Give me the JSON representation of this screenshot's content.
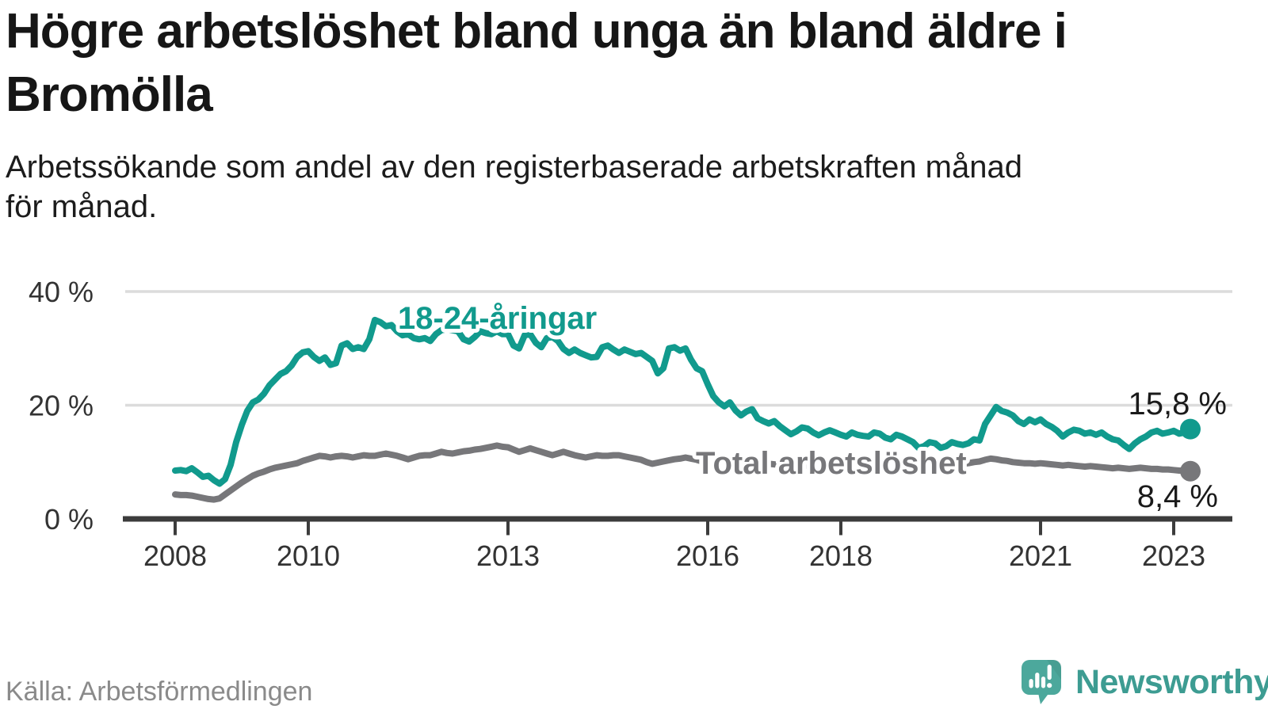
{
  "header": {
    "title_lines": [
      "Högre arbetslöshet bland unga än bland äldre i",
      "Bromölla"
    ],
    "subtitle_lines": [
      "Arbetssökande som andel av den registerbaserade arbetskraften månad",
      "för månad."
    ]
  },
  "footer": {
    "source": "Källa: Arbetsförmedlingen",
    "logo_text": "Newsworthy"
  },
  "colors": {
    "background": "#ffffff",
    "title_text": "#161616",
    "subtitle_text": "#1c1c1c",
    "series_young": "#119A8D",
    "series_total": "#77777A",
    "gridline": "#dcdcdc",
    "axis": "#3c3c3c",
    "tick_label": "#333333",
    "value_label": "#1a1a1a",
    "source_text": "#8a8a8a",
    "logo_bubble": "#4CA89C",
    "logo_text": "#3d9c92",
    "label_halo": "#ffffff"
  },
  "chart_data": {
    "type": "line",
    "title": "Högre arbetslöshet bland unga än bland äldre i Bromölla",
    "subtitle": "Arbetssökande som andel av den registerbaserade arbetskraften månad för månad.",
    "source": "Källa: Arbetsförmedlingen",
    "x_unit": "month",
    "x_start": "2008-01",
    "x_end": "2023-04",
    "x_tick_years": [
      2008,
      2010,
      2013,
      2016,
      2018,
      2021,
      2023
    ],
    "y_ticks": [
      {
        "value": 0,
        "label": "0 %"
      },
      {
        "value": 20,
        "label": "20 %"
      },
      {
        "value": 40,
        "label": "40 %"
      }
    ],
    "ylim": [
      0,
      42
    ],
    "grid": "horizontal",
    "legend_position": "inline-labels",
    "series": [
      {
        "id": "young",
        "name": "18-24-åringar",
        "color": "#119A8D",
        "end_value_label": "15,8 %",
        "values": [
          8.5,
          8.6,
          8.4,
          8.9,
          8.2,
          7.4,
          7.6,
          6.8,
          6.2,
          7.0,
          9.5,
          13.5,
          16.5,
          19.0,
          20.5,
          21.0,
          22.0,
          23.5,
          24.5,
          25.5,
          26.0,
          27.0,
          28.5,
          29.3,
          29.5,
          28.5,
          27.8,
          28.4,
          27.1,
          27.4,
          30.5,
          30.9,
          29.9,
          30.2,
          29.9,
          31.6,
          35.0,
          34.6,
          33.9,
          34.1,
          33.0,
          32.3,
          32.5,
          31.8,
          31.6,
          31.8,
          31.3,
          32.5,
          33.2,
          33.4,
          33.2,
          33.0,
          31.6,
          31.2,
          32.0,
          33.0,
          32.7,
          32.5,
          33.0,
          32.5,
          32.5,
          30.5,
          30.0,
          32.3,
          32.5,
          31.0,
          30.2,
          31.8,
          32.0,
          31.3,
          29.9,
          29.2,
          29.8,
          29.2,
          28.8,
          28.4,
          28.5,
          30.2,
          30.5,
          29.8,
          29.2,
          29.8,
          29.4,
          29.0,
          29.2,
          28.5,
          27.8,
          25.6,
          26.5,
          30.0,
          30.2,
          29.6,
          30.0,
          28.0,
          26.5,
          26.0,
          23.7,
          21.6,
          20.5,
          19.8,
          20.5,
          19.1,
          18.2,
          18.9,
          19.3,
          17.7,
          17.2,
          16.8,
          17.2,
          16.3,
          15.6,
          14.9,
          15.4,
          16.1,
          15.9,
          15.2,
          14.7,
          15.2,
          15.6,
          15.2,
          14.8,
          14.5,
          15.2,
          14.8,
          14.6,
          14.5,
          15.2,
          15.0,
          14.3,
          14.0,
          14.8,
          14.5,
          14.0,
          13.5,
          12.5,
          12.8,
          13.5,
          13.3,
          12.5,
          12.8,
          13.5,
          13.2,
          13.0,
          13.3,
          14.0,
          13.8,
          16.7,
          18.2,
          19.7,
          19.0,
          18.7,
          18.2,
          17.2,
          16.7,
          17.5,
          17.0,
          17.5,
          16.7,
          16.2,
          15.5,
          14.5,
          15.2,
          15.7,
          15.5,
          15.0,
          15.2,
          14.8,
          15.2,
          14.5,
          14.0,
          13.8,
          13.0,
          12.3,
          13.3,
          14.0,
          14.5,
          15.2,
          15.5,
          15.0,
          15.2,
          15.5,
          15.0,
          15.2,
          15.8
        ]
      },
      {
        "id": "total",
        "name": "Total arbetslöshet",
        "color": "#77777A",
        "end_value_label": "8,4 %",
        "values": [
          4.3,
          4.2,
          4.2,
          4.1,
          3.9,
          3.7,
          3.5,
          3.4,
          3.6,
          4.3,
          5.0,
          5.7,
          6.4,
          7.0,
          7.6,
          8.0,
          8.3,
          8.7,
          9.0,
          9.2,
          9.4,
          9.6,
          9.8,
          10.2,
          10.5,
          10.8,
          11.1,
          11.0,
          10.8,
          11.0,
          11.1,
          11.0,
          10.8,
          11.0,
          11.2,
          11.1,
          11.1,
          11.3,
          11.5,
          11.3,
          11.1,
          10.8,
          10.5,
          10.8,
          11.1,
          11.2,
          11.2,
          11.5,
          11.8,
          11.6,
          11.5,
          11.7,
          11.9,
          12.0,
          12.2,
          12.3,
          12.5,
          12.7,
          12.9,
          12.7,
          12.6,
          12.2,
          11.8,
          12.1,
          12.4,
          12.1,
          11.8,
          11.5,
          11.2,
          11.5,
          11.8,
          11.5,
          11.2,
          11.0,
          10.8,
          11.0,
          11.2,
          11.1,
          11.1,
          11.2,
          11.2,
          11.0,
          10.8,
          10.6,
          10.4,
          10.0,
          9.7,
          9.9,
          10.1,
          10.3,
          10.5,
          10.6,
          10.8,
          10.6,
          10.4,
          10.1,
          9.8,
          10.0,
          10.1,
          9.8,
          9.4,
          9.6,
          9.8,
          9.9,
          10.0,
          9.9,
          9.8,
          9.7,
          9.6,
          9.5,
          9.4,
          9.3,
          9.2,
          9.3,
          9.4,
          9.5,
          9.4,
          9.3,
          9.2,
          9.2,
          9.3,
          9.4,
          9.3,
          9.2,
          9.1,
          9.2,
          9.3,
          9.4,
          9.3,
          9.2,
          9.3,
          9.4,
          9.5,
          9.4,
          9.3,
          9.4,
          9.5,
          9.6,
          9.5,
          9.6,
          9.7,
          9.6,
          9.7,
          9.8,
          10.0,
          10.1,
          10.4,
          10.6,
          10.5,
          10.3,
          10.2,
          10.0,
          9.9,
          9.8,
          9.8,
          9.7,
          9.8,
          9.7,
          9.6,
          9.5,
          9.4,
          9.5,
          9.4,
          9.3,
          9.2,
          9.3,
          9.2,
          9.1,
          9.0,
          8.9,
          9.0,
          8.9,
          8.8,
          8.9,
          9.0,
          8.9,
          8.8,
          8.8,
          8.7,
          8.7,
          8.6,
          8.5,
          8.5,
          8.4
        ]
      }
    ]
  }
}
